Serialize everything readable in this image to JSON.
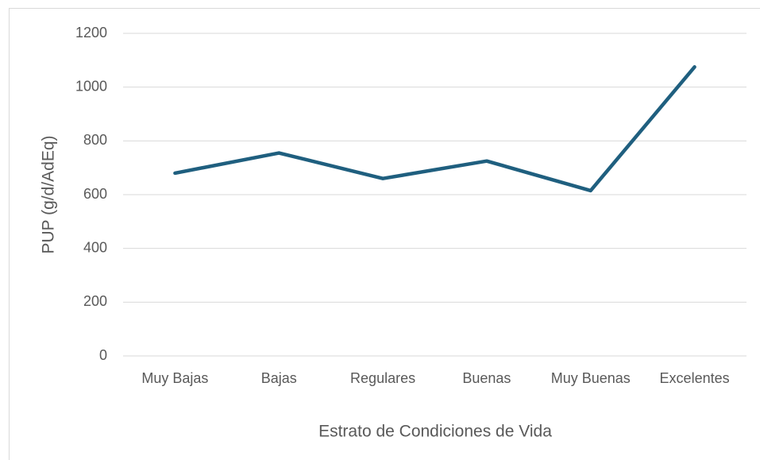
{
  "chart_data": {
    "type": "line",
    "x_label": "Estrato de Condiciones de Vida",
    "y_label": "PUP (g/d/AdEq)",
    "categories": [
      "Muy Bajas",
      "Bajas",
      "Regulares",
      "Buenas",
      "Muy Buenas",
      "Excelentes"
    ],
    "series": [
      {
        "name": "PUP",
        "color": "#1f5f7f",
        "values": [
          680,
          755,
          660,
          725,
          615,
          1075
        ]
      }
    ],
    "ylim": [
      0,
      1200
    ],
    "yticks": [
      0,
      200,
      400,
      600,
      800,
      1000,
      1200
    ],
    "grid": true
  }
}
